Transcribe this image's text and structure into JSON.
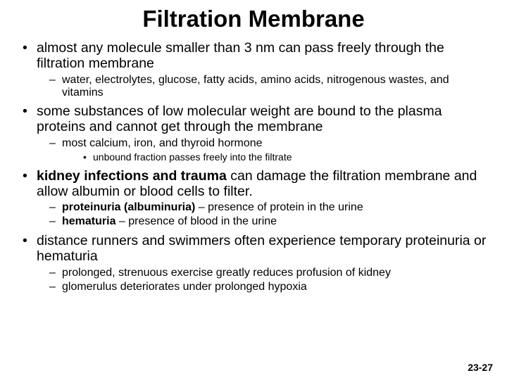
{
  "title": "Filtration Membrane",
  "bullets": [
    {
      "text": "almost any molecule smaller than 3 nm can pass freely through the filtration membrane",
      "sub": [
        {
          "text": "water, electrolytes, glucose, fatty acids, amino acids, nitrogenous wastes, and vitamins"
        }
      ]
    },
    {
      "text": "some substances of low molecular weight are bound to the plasma proteins and cannot get through the membrane",
      "sub": [
        {
          "text": "most calcium, iron, and thyroid hormone",
          "sub": [
            {
              "text": "unbound fraction passes freely into the filtrate"
            }
          ]
        }
      ]
    },
    {
      "boldPrefix": "kidney infections and trauma",
      "rest": " can damage the filtration membrane and allow albumin or blood cells to filter.",
      "sub": [
        {
          "boldPrefix": "proteinuria (albuminuria)",
          "rest": " – presence of protein in the urine"
        },
        {
          "boldPrefix": "hematuria",
          "rest": " – presence of blood in the urine"
        }
      ]
    },
    {
      "text": "distance runners and swimmers often experience temporary proteinuria or hematuria",
      "sub": [
        {
          "text": "prolonged, strenuous exercise greatly reduces profusion of kidney"
        },
        {
          "text": "glomerulus deteriorates under prolonged hypoxia"
        }
      ]
    }
  ],
  "pageNumber": "23-27",
  "colors": {
    "background": "#ffffff",
    "text": "#000000"
  }
}
